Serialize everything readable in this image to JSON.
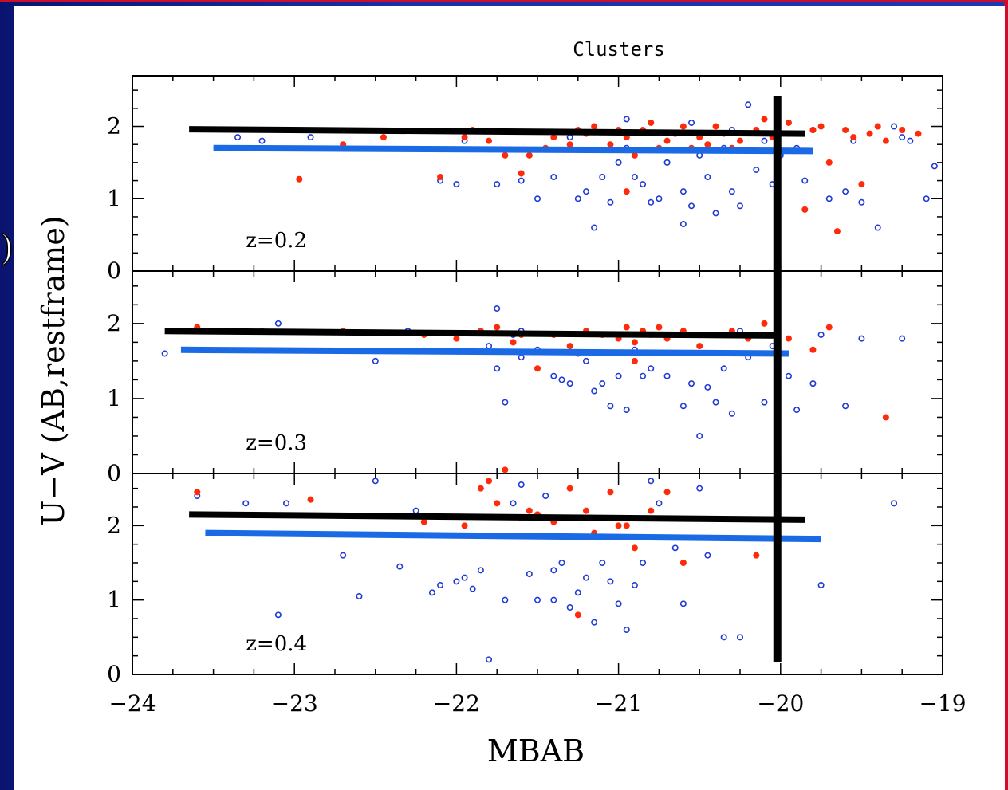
{
  "colors": {
    "background": "#1c1f8c",
    "red_points": "#ff2a0a",
    "blue_points": "#1f3ad6",
    "black_line": "#000000",
    "blue_line": "#1a6ae6"
  },
  "clipped_left_text": ")",
  "chart_data": {
    "type": "scatter",
    "title": "Clusters",
    "xlabel": "MBAB",
    "ylabel": "U−V (AB,restframe)",
    "xlim": [
      -24,
      -19
    ],
    "x_ticks": [
      "−24",
      "−23",
      "−22",
      "−21",
      "−20",
      "−19"
    ],
    "y_ticks": [
      "0",
      "1",
      "2"
    ],
    "panels": [
      {
        "annotation": "z=0.2",
        "ylim": [
          0,
          2.7
        ],
        "black_line": {
          "x": [
            -23.65,
            -19.85
          ],
          "y": [
            1.96,
            1.9
          ]
        },
        "blue_line": {
          "x": [
            -23.5,
            -19.8
          ],
          "y": [
            1.7,
            1.66
          ]
        },
        "red": [
          [
            -22.97,
            1.27
          ],
          [
            -22.7,
            1.75
          ],
          [
            -22.45,
            1.85
          ],
          [
            -21.95,
            1.85
          ],
          [
            -21.7,
            1.6
          ],
          [
            -21.6,
            1.35
          ],
          [
            -21.55,
            1.6
          ],
          [
            -21.45,
            1.7
          ],
          [
            -21.3,
            1.75
          ],
          [
            -21.2,
            1.9
          ],
          [
            -21.15,
            2.0
          ],
          [
            -21.05,
            1.75
          ],
          [
            -20.95,
            1.85
          ],
          [
            -20.9,
            1.6
          ],
          [
            -20.85,
            1.95
          ],
          [
            -20.8,
            2.05
          ],
          [
            -20.75,
            1.7
          ],
          [
            -20.7,
            1.8
          ],
          [
            -20.65,
            1.9
          ],
          [
            -20.6,
            2.0
          ],
          [
            -20.55,
            1.7
          ],
          [
            -20.5,
            1.85
          ],
          [
            -20.45,
            1.75
          ],
          [
            -20.4,
            2.0
          ],
          [
            -20.35,
            1.9
          ],
          [
            -20.3,
            1.7
          ],
          [
            -20.25,
            1.8
          ],
          [
            -20.15,
            1.95
          ],
          [
            -20.1,
            2.1
          ],
          [
            -20.05,
            1.85
          ],
          [
            -19.95,
            2.05
          ],
          [
            -19.9,
            1.9
          ],
          [
            -19.85,
            0.85
          ],
          [
            -19.8,
            1.95
          ],
          [
            -19.75,
            2.0
          ],
          [
            -19.7,
            1.5
          ],
          [
            -19.65,
            0.55
          ],
          [
            -19.6,
            1.95
          ],
          [
            -19.55,
            1.85
          ],
          [
            -19.5,
            1.2
          ],
          [
            -19.45,
            1.9
          ],
          [
            -19.4,
            2.0
          ],
          [
            -19.35,
            1.8
          ],
          [
            -19.25,
            1.95
          ],
          [
            -19.15,
            1.9
          ],
          [
            -21.9,
            1.95
          ],
          [
            -21.8,
            1.8
          ],
          [
            -21.4,
            1.85
          ],
          [
            -21.0,
            1.95
          ],
          [
            -20.95,
            1.1
          ],
          [
            -21.25,
            1.95
          ],
          [
            -22.1,
            1.3
          ]
        ],
        "blue": [
          [
            -23.35,
            1.85
          ],
          [
            -23.2,
            1.8
          ],
          [
            -22.9,
            1.85
          ],
          [
            -22.1,
            1.25
          ],
          [
            -22.0,
            1.2
          ],
          [
            -21.95,
            1.8
          ],
          [
            -21.75,
            1.2
          ],
          [
            -21.6,
            1.25
          ],
          [
            -21.4,
            1.3
          ],
          [
            -21.3,
            1.85
          ],
          [
            -21.25,
            1.0
          ],
          [
            -21.2,
            1.1
          ],
          [
            -21.1,
            1.3
          ],
          [
            -21.05,
            0.95
          ],
          [
            -21.0,
            1.5
          ],
          [
            -20.95,
            1.7
          ],
          [
            -20.9,
            1.3
          ],
          [
            -20.85,
            1.2
          ],
          [
            -20.8,
            0.95
          ],
          [
            -20.75,
            1.0
          ],
          [
            -20.7,
            1.5
          ],
          [
            -20.65,
            1.9
          ],
          [
            -20.6,
            1.1
          ],
          [
            -20.55,
            0.9
          ],
          [
            -20.5,
            1.6
          ],
          [
            -20.45,
            1.3
          ],
          [
            -20.4,
            0.8
          ],
          [
            -20.35,
            1.7
          ],
          [
            -20.3,
            1.1
          ],
          [
            -20.25,
            0.9
          ],
          [
            -20.2,
            2.3
          ],
          [
            -20.15,
            1.4
          ],
          [
            -20.1,
            1.8
          ],
          [
            -20.05,
            1.2
          ],
          [
            -20.0,
            1.6
          ],
          [
            -19.95,
            1.9
          ],
          [
            -19.9,
            1.7
          ],
          [
            -19.85,
            1.25
          ],
          [
            -19.8,
            1.95
          ],
          [
            -19.7,
            1.0
          ],
          [
            -19.6,
            1.1
          ],
          [
            -19.55,
            1.8
          ],
          [
            -19.5,
            0.95
          ],
          [
            -19.4,
            0.6
          ],
          [
            -19.3,
            2.0
          ],
          [
            -19.25,
            1.85
          ],
          [
            -19.2,
            1.8
          ],
          [
            -19.1,
            1.0
          ],
          [
            -19.05,
            1.45
          ],
          [
            -21.15,
            0.6
          ],
          [
            -21.5,
            1.0
          ],
          [
            -20.6,
            0.65
          ],
          [
            -20.95,
            2.1
          ],
          [
            -20.55,
            2.05
          ],
          [
            -20.3,
            1.95
          ]
        ]
      },
      {
        "annotation": "z=0.3",
        "ylim": [
          0,
          2.7
        ],
        "black_line": {
          "x": [
            -23.8,
            -20.0
          ],
          "y": [
            1.9,
            1.84
          ]
        },
        "blue_line": {
          "x": [
            -23.7,
            -19.95
          ],
          "y": [
            1.65,
            1.6
          ]
        },
        "red": [
          [
            -23.6,
            1.95
          ],
          [
            -23.2,
            1.9
          ],
          [
            -22.7,
            1.9
          ],
          [
            -22.2,
            1.85
          ],
          [
            -22.0,
            1.8
          ],
          [
            -21.85,
            1.9
          ],
          [
            -21.75,
            1.95
          ],
          [
            -21.65,
            1.75
          ],
          [
            -21.5,
            1.4
          ],
          [
            -21.4,
            1.85
          ],
          [
            -21.3,
            1.7
          ],
          [
            -21.2,
            1.9
          ],
          [
            -21.1,
            1.85
          ],
          [
            -21.0,
            1.8
          ],
          [
            -20.95,
            1.95
          ],
          [
            -20.9,
            1.75
          ],
          [
            -20.85,
            1.9
          ],
          [
            -20.8,
            1.85
          ],
          [
            -20.75,
            1.95
          ],
          [
            -20.7,
            1.8
          ],
          [
            -20.6,
            1.9
          ],
          [
            -20.5,
            1.7
          ],
          [
            -20.4,
            1.85
          ],
          [
            -20.3,
            1.9
          ],
          [
            -20.2,
            1.8
          ],
          [
            -20.1,
            2.0
          ],
          [
            -19.95,
            1.8
          ],
          [
            -19.8,
            1.65
          ],
          [
            -19.7,
            1.95
          ],
          [
            -19.35,
            0.75
          ],
          [
            -20.9,
            1.5
          ],
          [
            -21.6,
            1.85
          ]
        ],
        "blue": [
          [
            -23.8,
            1.6
          ],
          [
            -23.1,
            2.0
          ],
          [
            -22.5,
            1.5
          ],
          [
            -22.3,
            1.9
          ],
          [
            -21.8,
            1.7
          ],
          [
            -21.75,
            1.4
          ],
          [
            -21.7,
            0.95
          ],
          [
            -21.65,
            1.85
          ],
          [
            -21.6,
            1.55
          ],
          [
            -21.5,
            1.65
          ],
          [
            -21.4,
            1.3
          ],
          [
            -21.35,
            1.25
          ],
          [
            -21.3,
            1.2
          ],
          [
            -21.25,
            1.6
          ],
          [
            -21.2,
            1.5
          ],
          [
            -21.15,
            1.1
          ],
          [
            -21.1,
            1.2
          ],
          [
            -21.05,
            0.9
          ],
          [
            -21.0,
            1.3
          ],
          [
            -20.95,
            0.85
          ],
          [
            -20.9,
            1.65
          ],
          [
            -20.85,
            1.3
          ],
          [
            -20.8,
            1.4
          ],
          [
            -20.7,
            1.3
          ],
          [
            -20.6,
            0.9
          ],
          [
            -20.55,
            1.2
          ],
          [
            -20.5,
            0.5
          ],
          [
            -20.45,
            1.15
          ],
          [
            -20.4,
            0.95
          ],
          [
            -20.35,
            1.4
          ],
          [
            -20.3,
            0.8
          ],
          [
            -20.25,
            1.9
          ],
          [
            -20.2,
            1.55
          ],
          [
            -20.1,
            0.95
          ],
          [
            -20.05,
            1.7
          ],
          [
            -19.95,
            1.3
          ],
          [
            -19.9,
            0.85
          ],
          [
            -19.8,
            1.2
          ],
          [
            -19.75,
            1.85
          ],
          [
            -19.6,
            0.9
          ],
          [
            -19.5,
            1.8
          ],
          [
            -19.25,
            1.8
          ],
          [
            -21.75,
            2.2
          ],
          [
            -21.6,
            1.9
          ]
        ]
      },
      {
        "annotation": "z=0.4",
        "ylim": [
          0,
          2.7
        ],
        "black_line": {
          "x": [
            -23.65,
            -19.85
          ],
          "y": [
            2.15,
            2.08
          ]
        },
        "blue_line": {
          "x": [
            -23.55,
            -19.75
          ],
          "y": [
            1.9,
            1.82
          ]
        },
        "red": [
          [
            -23.6,
            2.45
          ],
          [
            -22.9,
            2.35
          ],
          [
            -22.2,
            2.05
          ],
          [
            -21.95,
            2.0
          ],
          [
            -21.85,
            2.5
          ],
          [
            -21.8,
            2.6
          ],
          [
            -21.75,
            2.3
          ],
          [
            -21.7,
            2.75
          ],
          [
            -21.6,
            2.1
          ],
          [
            -21.55,
            2.2
          ],
          [
            -21.5,
            2.15
          ],
          [
            -21.4,
            2.05
          ],
          [
            -21.3,
            2.5
          ],
          [
            -21.2,
            2.2
          ],
          [
            -21.15,
            1.9
          ],
          [
            -21.05,
            2.45
          ],
          [
            -21.0,
            2.1
          ],
          [
            -20.95,
            2.0
          ],
          [
            -20.9,
            1.7
          ],
          [
            -20.8,
            2.2
          ],
          [
            -20.7,
            2.45
          ],
          [
            -20.6,
            1.5
          ],
          [
            -21.1,
            1.85
          ],
          [
            -21.25,
            0.8
          ],
          [
            -21.0,
            2.0
          ],
          [
            -20.15,
            1.6
          ]
        ],
        "blue": [
          [
            -23.6,
            2.4
          ],
          [
            -23.3,
            2.3
          ],
          [
            -23.1,
            0.8
          ],
          [
            -23.05,
            2.3
          ],
          [
            -22.7,
            1.6
          ],
          [
            -22.6,
            1.05
          ],
          [
            -22.5,
            2.6
          ],
          [
            -22.35,
            1.45
          ],
          [
            -22.25,
            2.2
          ],
          [
            -22.15,
            1.1
          ],
          [
            -22.1,
            1.2
          ],
          [
            -22.0,
            1.25
          ],
          [
            -21.95,
            1.3
          ],
          [
            -21.9,
            1.15
          ],
          [
            -21.85,
            1.4
          ],
          [
            -21.8,
            0.2
          ],
          [
            -21.7,
            1.0
          ],
          [
            -21.65,
            2.3
          ],
          [
            -21.6,
            2.55
          ],
          [
            -21.55,
            1.35
          ],
          [
            -21.5,
            1.0
          ],
          [
            -21.45,
            2.4
          ],
          [
            -21.4,
            1.0
          ],
          [
            -21.35,
            1.5
          ],
          [
            -21.3,
            0.9
          ],
          [
            -21.25,
            1.1
          ],
          [
            -21.2,
            1.3
          ],
          [
            -21.15,
            0.7
          ],
          [
            -21.1,
            1.5
          ],
          [
            -21.05,
            1.25
          ],
          [
            -21.0,
            0.95
          ],
          [
            -20.95,
            0.6
          ],
          [
            -20.9,
            1.2
          ],
          [
            -20.85,
            1.5
          ],
          [
            -20.8,
            2.6
          ],
          [
            -20.75,
            2.3
          ],
          [
            -20.65,
            1.7
          ],
          [
            -20.6,
            0.95
          ],
          [
            -20.5,
            2.5
          ],
          [
            -20.45,
            1.6
          ],
          [
            -20.35,
            0.5
          ],
          [
            -20.25,
            0.5
          ],
          [
            -19.3,
            2.3
          ],
          [
            -19.75,
            1.2
          ],
          [
            -21.4,
            1.4
          ]
        ]
      }
    ]
  }
}
